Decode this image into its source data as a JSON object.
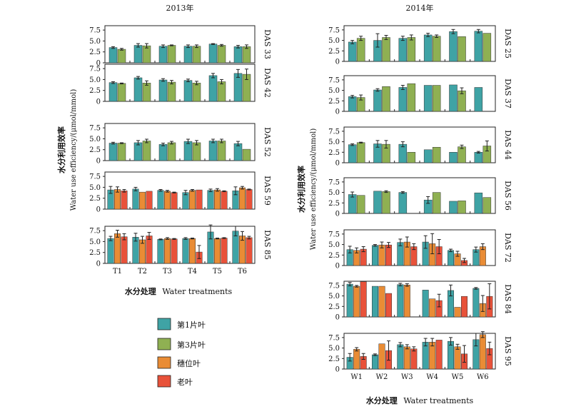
{
  "colors": {
    "leaf1": "#3fa3a5",
    "leaf3": "#8fb052",
    "ear": "#e98c35",
    "old": "#e8523a",
    "axis": "#222222",
    "errorbar": "#222222"
  },
  "legend": {
    "items": [
      {
        "label": "第1片叶",
        "color_key": "leaf1"
      },
      {
        "label": "第3片叶",
        "color_key": "leaf3"
      },
      {
        "label": "穗位叶",
        "color_key": "ear"
      },
      {
        "label": "老叶",
        "color_key": "old"
      }
    ]
  },
  "chart_data": [
    {
      "type": "bar",
      "title": "2013年",
      "ylabel_cn": "水分利用效率",
      "ylabel_en": "Water use efficiency/(μmol/mmol)",
      "xlabel_cn": "水分处理",
      "xlabel_en": "Water treatments",
      "categories": [
        "T1",
        "T2",
        "T3",
        "T4",
        "T5",
        "T6"
      ],
      "yticks": [
        "0",
        "2.5",
        "5.0",
        "7.5"
      ],
      "ylim": [
        0,
        8.5
      ],
      "grid": false,
      "panels": [
        {
          "label": "DAS 33",
          "series": [
            {
              "name": "第1片叶",
              "values": [
                3.5,
                4.0,
                3.8,
                3.8,
                4.3,
                3.7
              ],
              "errors": [
                0.2,
                0.4,
                0.3,
                0.3,
                0.1,
                0.3
              ]
            },
            {
              "name": "第3片叶",
              "values": [
                3.1,
                3.9,
                4.0,
                3.8,
                4.0,
                3.7
              ],
              "errors": [
                0.2,
                0.5,
                0.1,
                0.3,
                0.2,
                0.4
              ]
            }
          ]
        },
        {
          "label": "DAS 42",
          "series": [
            {
              "name": "第1片叶",
              "values": [
                4.3,
                5.4,
                4.9,
                4.8,
                5.9,
                6.4
              ],
              "errors": [
                0.2,
                0.3,
                0.3,
                0.3,
                0.5,
                0.9
              ]
            },
            {
              "name": "第3片叶",
              "values": [
                4.1,
                4.2,
                4.4,
                4.2,
                4.5,
                6.2
              ],
              "errors": [
                0.1,
                0.5,
                0.4,
                0.4,
                0.5,
                1.2
              ]
            }
          ]
        },
        {
          "label": "DAS 52",
          "series": [
            {
              "name": "第1片叶",
              "values": [
                4.0,
                4.1,
                3.7,
                4.4,
                4.5,
                3.9
              ],
              "errors": [
                0.2,
                0.5,
                0.3,
                0.5,
                0.4,
                0.5
              ]
            },
            {
              "name": "第3片叶",
              "values": [
                4.0,
                4.5,
                4.1,
                4.1,
                4.5,
                2.6
              ],
              "errors": [
                0.1,
                0.4,
                0.3,
                0.5,
                0.4,
                0.0
              ]
            }
          ]
        },
        {
          "label": "DAS 59",
          "series": [
            {
              "name": "第1片叶",
              "values": [
                4.4,
                4.6,
                4.3,
                3.8,
                4.3,
                4.2
              ],
              "errors": [
                0.8,
                0.4,
                0.2,
                0.5,
                0.3,
                0.9
              ]
            },
            {
              "name": "穗位叶",
              "values": [
                4.5,
                3.9,
                4.1,
                4.3,
                4.4,
                4.9
              ],
              "errors": [
                0.6,
                0.0,
                0.2,
                0.2,
                0.3,
                0.3
              ]
            },
            {
              "name": "老叶",
              "values": [
                4.2,
                4.1,
                3.8,
                4.4,
                4.1,
                4.5
              ],
              "errors": [
                0.3,
                0.0,
                0.1,
                0.0,
                0.1,
                0.1
              ]
            }
          ]
        },
        {
          "label": "DAS 85",
          "series": [
            {
              "name": "第1片叶",
              "values": [
                5.7,
                6.0,
                5.5,
                5.7,
                7.2,
                7.4
              ],
              "errors": [
                0.5,
                0.9,
                0.1,
                0.2,
                1.6,
                1.1
              ]
            },
            {
              "name": "穗位叶",
              "values": [
                6.8,
                5.4,
                5.7,
                5.7,
                5.7,
                6.3
              ],
              "errors": [
                0.8,
                0.8,
                0.2,
                0.1,
                0.1,
                1.0
              ]
            },
            {
              "name": "老叶",
              "values": [
                6.1,
                6.3,
                5.6,
                2.6,
                5.8,
                5.9
              ],
              "errors": [
                0.7,
                0.8,
                0.1,
                1.5,
                0.1,
                0.3
              ]
            }
          ]
        }
      ]
    },
    {
      "type": "bar",
      "title": "2014年",
      "ylabel_cn": "水分利用效率",
      "ylabel_en": "Water use efficiency/(μmol/mmol)",
      "xlabel_cn": "水分处理",
      "xlabel_en": "Water treatments",
      "categories": [
        "W1",
        "W2",
        "W3",
        "W4",
        "W5",
        "W6"
      ],
      "yticks": [
        "0",
        "2.5",
        "5.0",
        "7.5"
      ],
      "ylim": [
        0,
        8.5
      ],
      "grid": false,
      "panels": [
        {
          "label": "DAS 25",
          "series": [
            {
              "name": "第1片叶",
              "values": [
                4.6,
                5.0,
                5.5,
                6.3,
                7.1,
                7.2
              ],
              "errors": [
                0.4,
                1.6,
                0.5,
                0.4,
                0.5,
                0.4
              ]
            },
            {
              "name": "第3片叶",
              "values": [
                5.5,
                5.7,
                5.7,
                6.0,
                5.9,
                6.7
              ],
              "errors": [
                0.5,
                0.5,
                0.6,
                0.3,
                0.0,
                0.0
              ]
            }
          ]
        },
        {
          "label": "DAS 37",
          "series": [
            {
              "name": "第1片叶",
              "values": [
                3.5,
                5.1,
                5.7,
                6.2,
                6.3,
                5.7
              ],
              "errors": [
                0.3,
                0.3,
                0.5,
                0.0,
                0.0,
                0.0
              ]
            },
            {
              "name": "第3片叶",
              "values": [
                3.3,
                5.9,
                6.6,
                6.2,
                4.9,
                null
              ],
              "errors": [
                0.6,
                0.0,
                0.0,
                0.0,
                0.7,
                0
              ]
            }
          ]
        },
        {
          "label": "DAS 44",
          "series": [
            {
              "name": "第1片叶",
              "values": [
                4.3,
                4.5,
                4.4,
                3.1,
                2.5,
                2.5
              ],
              "errors": [
                0.2,
                0.8,
                0.6,
                0.0,
                0.0,
                0.2
              ]
            },
            {
              "name": "第3片叶",
              "values": [
                4.8,
                4.4,
                2.5,
                3.7,
                3.8,
                4.0
              ],
              "errors": [
                0.1,
                0.9,
                0.0,
                0.0,
                0.4,
                1.2
              ]
            }
          ]
        },
        {
          "label": "DAS 56",
          "series": [
            {
              "name": "第1片叶",
              "values": [
                4.5,
                5.3,
                5.0,
                3.2,
                2.9,
                4.9
              ],
              "errors": [
                0.6,
                0.0,
                0.2,
                0.8,
                0.0,
                0.0
              ]
            },
            {
              "name": "第3片叶",
              "values": [
                4.3,
                5.2,
                null,
                5.0,
                3.0,
                3.8
              ],
              "errors": [
                0.0,
                0.2,
                0,
                0.0,
                0.0,
                0.0
              ]
            }
          ]
        },
        {
          "label": "DAS 72",
          "series": [
            {
              "name": "第1片叶",
              "values": [
                3.8,
                4.8,
                5.5,
                5.6,
                3.6,
                3.8
              ],
              "errors": [
                0.8,
                0.2,
                0.8,
                1.5,
                0.3,
                0.6
              ]
            },
            {
              "name": "穗位叶",
              "values": [
                3.6,
                4.9,
                5.6,
                5.2,
                2.8,
                4.5
              ],
              "errors": [
                0.6,
                0.7,
                1.2,
                2.4,
                0.6,
                0.7
              ]
            },
            {
              "name": "老叶",
              "values": [
                3.9,
                4.9,
                4.5,
                4.5,
                1.2,
                null
              ],
              "errors": [
                0.6,
                0.6,
                0.7,
                1.7,
                0.5,
                0
              ]
            }
          ]
        },
        {
          "label": "DAS 84",
          "series": [
            {
              "name": "第1片叶",
              "values": [
                7.8,
                7.3,
                7.7,
                6.4,
                6.3,
                6.8
              ],
              "errors": [
                0.4,
                0.0,
                0.3,
                0.0,
                1.3,
                0.2
              ]
            },
            {
              "name": "穗位叶",
              "values": [
                7.3,
                7.3,
                7.6,
                4.3,
                2.3,
                3.2
              ],
              "errors": [
                0.2,
                0.0,
                0.3,
                0.0,
                0.0,
                1.9
              ]
            },
            {
              "name": "老叶",
              "values": [
                8.4,
                5.6,
                null,
                3.9,
                4.9,
                4.9
              ],
              "errors": [
                0.0,
                0.0,
                0,
                1.5,
                0.0,
                3.0
              ]
            }
          ]
        },
        {
          "label": "DAS 95",
          "series": [
            {
              "name": "第1片叶",
              "values": [
                2.8,
                3.4,
                5.8,
                6.4,
                6.6,
                7.0
              ],
              "errors": [
                0.9,
                0.2,
                0.5,
                0.9,
                0.9,
                1.5
              ]
            },
            {
              "name": "穗位叶",
              "values": [
                4.7,
                6.0,
                5.3,
                6.4,
                5.3,
                8.2
              ],
              "errors": [
                0.4,
                0.0,
                0.5,
                0.9,
                0.6,
                0.7
              ]
            },
            {
              "name": "老叶",
              "values": [
                3.0,
                4.4,
                4.8,
                6.9,
                3.6,
                4.9
              ],
              "errors": [
                0.7,
                2.3,
                0.5,
                0.0,
                2.0,
                1.5
              ]
            }
          ]
        }
      ]
    }
  ]
}
